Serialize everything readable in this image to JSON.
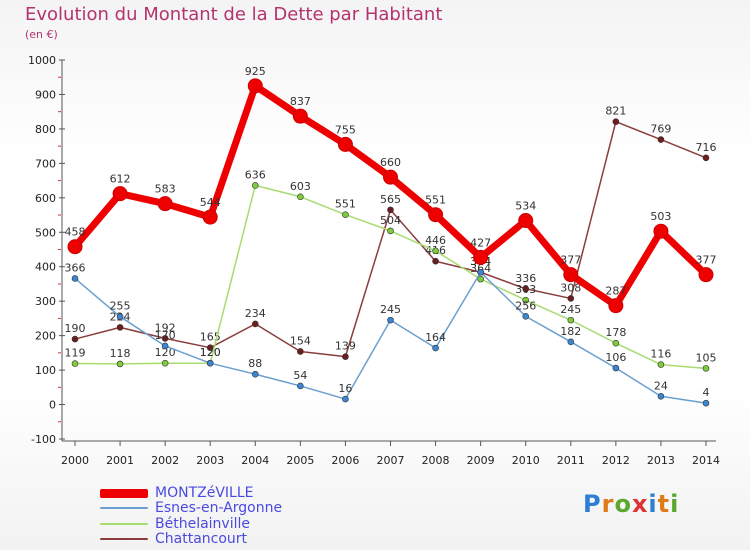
{
  "header": {
    "title": "Evolution du Montant de la Dette par Habitant",
    "subtitle": "(en €)"
  },
  "colors": {
    "title": "#b4336e",
    "legend_text": "#4a4ae0",
    "grid": "#cccccc",
    "axis": "#555555"
  },
  "logo": {
    "text": "Proxiti",
    "letter_colors": [
      "#2e7fd4",
      "#e07a1a",
      "#5aa82d",
      "#d33",
      "#2e7fd4",
      "#e07a1a",
      "#5aa82d"
    ]
  },
  "chart_data": {
    "type": "line",
    "title": "Evolution du Montant de la Dette par Habitant",
    "subtitle": "(en €)",
    "xlabel": "",
    "ylabel": "",
    "categories": [
      "2000",
      "2001",
      "2002",
      "2003",
      "2004",
      "2005",
      "2006",
      "2007",
      "2008",
      "2009",
      "2010",
      "2011",
      "2012",
      "2013",
      "2014"
    ],
    "ylim": [
      -100,
      1000
    ],
    "yticks": [
      -100,
      0,
      100,
      200,
      300,
      400,
      500,
      600,
      700,
      800,
      900,
      1000
    ],
    "grid": false,
    "legend_position": "bottom-left",
    "series": [
      {
        "name": "MONTZéVILLE",
        "color": "#ee0000",
        "marker": "#ee0000",
        "values": [
          458,
          612,
          583,
          544,
          925,
          837,
          755,
          660,
          551,
          427,
          534,
          377,
          287,
          503,
          377
        ]
      },
      {
        "name": "Esnes-en-Argonne",
        "color": "#6a9fcf",
        "marker": "#3a86d0",
        "values": [
          366,
          255,
          170,
          120,
          88,
          54,
          16,
          245,
          164,
          384,
          256,
          182,
          106,
          24,
          4
        ]
      },
      {
        "name": "Béthelainville",
        "color": "#a8db70",
        "marker": "#7ecb3c",
        "values": [
          119,
          118,
          120,
          120,
          636,
          603,
          551,
          504,
          446,
          364,
          303,
          245,
          178,
          116,
          105
        ]
      },
      {
        "name": "Chattancourt",
        "color": "#8b3d3d",
        "marker": "#6e1c1c",
        "values": [
          190,
          224,
          192,
          165,
          234,
          154,
          139,
          565,
          416,
          384,
          336,
          308,
          821,
          769,
          716
        ]
      }
    ]
  }
}
